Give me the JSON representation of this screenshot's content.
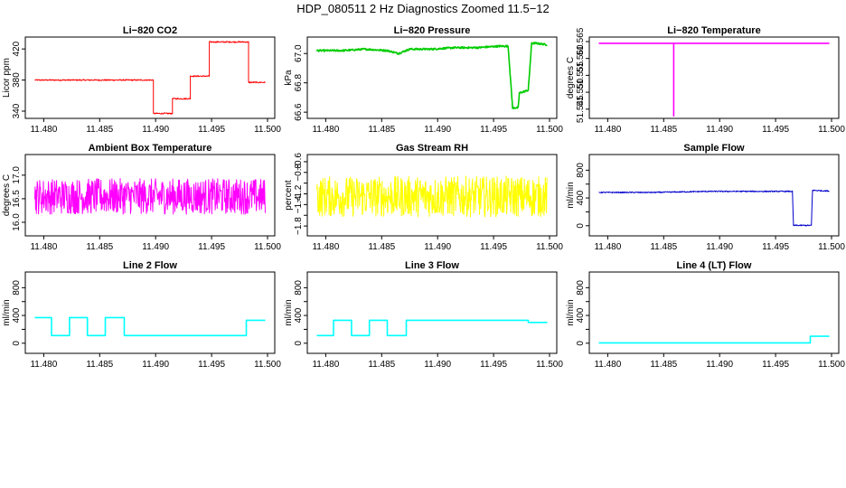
{
  "page": {
    "title": "HDP_080511  2 Hz Diagnostics Zoomed 11.5−12"
  },
  "chart_data": [
    {
      "type": "line",
      "title": "Li−820 CO2",
      "xlabel": "",
      "ylabel": "Licor ppm",
      "color": "#ff0000",
      "xlim": [
        11.479,
        11.5
      ],
      "ylim": [
        333,
        433
      ],
      "xticks": [
        11.48,
        11.485,
        11.49,
        11.495,
        11.5
      ],
      "xtick_labels": [
        "11.480",
        "11.485",
        "11.490",
        "11.495",
        "11.500"
      ],
      "yticks": [
        340,
        380,
        420
      ],
      "ytick_labels": [
        "340",
        "380",
        "420"
      ],
      "series": [
        {
          "x": [
            11.4792,
            11.4898,
            11.4898,
            11.4915,
            11.4915,
            11.4931,
            11.4931,
            11.4948,
            11.4948,
            11.4983,
            11.4983,
            11.4998
          ],
          "y": [
            380,
            380,
            337,
            337,
            356,
            356,
            385,
            385,
            429,
            429,
            377,
            377
          ]
        }
      ],
      "noise": 0.8
    },
    {
      "type": "line",
      "title": "Li−820 Pressure",
      "xlabel": "",
      "ylabel": "kPa",
      "color": "#00cc00",
      "xlim": [
        11.479,
        11.5
      ],
      "ylim": [
        66.57,
        67.1
      ],
      "xticks": [
        11.48,
        11.485,
        11.49,
        11.495,
        11.5
      ],
      "xtick_labels": [
        "11.480",
        "11.485",
        "11.490",
        "11.495",
        "11.500"
      ],
      "yticks": [
        66.6,
        66.8,
        67.0
      ],
      "ytick_labels": [
        "66.6",
        "66.8",
        "67.0"
      ],
      "series": [
        {
          "x": [
            11.4792,
            11.4815,
            11.4835,
            11.4855,
            11.4865,
            11.4875,
            11.4895,
            11.4915,
            11.4935,
            11.4955,
            11.4963,
            11.4967,
            11.4968,
            11.4972,
            11.4973,
            11.4981,
            11.4984,
            11.4988,
            11.4998
          ],
          "y": [
            67.02,
            67.02,
            67.03,
            67.02,
            67.0,
            67.03,
            67.03,
            67.04,
            67.04,
            67.05,
            67.05,
            66.63,
            66.63,
            66.63,
            66.73,
            66.75,
            67.07,
            67.07,
            67.06
          ]
        }
      ],
      "noise": 0.006
    },
    {
      "type": "line",
      "title": "Li−820 Temperature",
      "xlabel": "",
      "ylabel": "degrees C",
      "color": "#ff00ff",
      "xlim": [
        11.479,
        11.5
      ],
      "ylim": [
        51.5428,
        51.5658
      ],
      "xticks": [
        11.48,
        11.485,
        11.49,
        11.495,
        11.5
      ],
      "xtick_labels": [
        "11.480",
        "11.485",
        "11.490",
        "11.495",
        "11.500"
      ],
      "yticks": [
        51.545,
        51.55,
        51.555,
        51.56,
        51.565
      ],
      "ytick_labels": [
        "51.545",
        "51.550",
        "51.555",
        "51.560",
        "51.565"
      ],
      "series": [
        {
          "x": [
            11.4792,
            11.4859,
            11.4859,
            11.4859,
            11.4998
          ],
          "y": [
            51.5645,
            51.5645,
            51.543,
            51.5645,
            51.5645
          ]
        }
      ],
      "noise": 0
    },
    {
      "type": "line",
      "title": "Ambient Box Temperature",
      "xlabel": "",
      "ylabel": "degrees C",
      "color": "#ff00ff",
      "xlim": [
        11.479,
        11.5
      ],
      "ylim": [
        15.75,
        17.4
      ],
      "xticks": [
        11.48,
        11.485,
        11.49,
        11.495,
        11.5
      ],
      "xtick_labels": [
        "11.480",
        "11.485",
        "11.490",
        "11.495",
        "11.500"
      ],
      "yticks": [
        16.0,
        16.5,
        17.0
      ],
      "ytick_labels": [
        "16.0",
        "16.5",
        "17.0"
      ],
      "series": [
        {
          "x": [
            11.4792,
            11.4998
          ],
          "y": [
            16.55,
            16.55
          ]
        }
      ],
      "noise": 0.38
    },
    {
      "type": "line",
      "title": "Gas Stream RH",
      "xlabel": "",
      "ylabel": "percent",
      "color": "#ffff00",
      "xlim": [
        11.479,
        11.5
      ],
      "ylim": [
        -1.95,
        -0.5
      ],
      "xticks": [
        11.48,
        11.485,
        11.49,
        11.495,
        11.5
      ],
      "xtick_labels": [
        "11.480",
        "11.485",
        "11.490",
        "11.495",
        "11.500"
      ],
      "yticks": [
        -1.8,
        -1.6,
        -1.4,
        -1.2,
        -1.0,
        -0.8,
        -0.6
      ],
      "ytick_labels": [
        "−1.8",
        "",
        "−1.4",
        "−1.2",
        "",
        "−0.8",
        "−0.6"
      ],
      "series": [
        {
          "x": [
            11.4792,
            11.4998
          ],
          "y": [
            -1.25,
            -1.25
          ]
        }
      ],
      "noise": 0.38
    },
    {
      "type": "line",
      "title": "Sample Flow",
      "xlabel": "",
      "ylabel": "ml/min",
      "color": "#0000cc",
      "xlim": [
        11.479,
        11.5
      ],
      "ylim": [
        -120,
        1000
      ],
      "xticks": [
        11.48,
        11.485,
        11.49,
        11.495,
        11.5
      ],
      "xtick_labels": [
        "11.480",
        "11.485",
        "11.490",
        "11.495",
        "11.500"
      ],
      "yticks": [
        0,
        200,
        400,
        600,
        800
      ],
      "ytick_labels": [
        "0",
        "",
        "400",
        "",
        "800"
      ],
      "series": [
        {
          "x": [
            11.4792,
            11.484,
            11.489,
            11.4965,
            11.4966,
            11.4982,
            11.4983,
            11.4998
          ],
          "y": [
            480,
            480,
            495,
            495,
            5,
            5,
            510,
            500
          ]
        }
      ],
      "noise": 8
    },
    {
      "type": "line",
      "title": "Line 2 Flow",
      "xlabel": "",
      "ylabel": "ml/min",
      "color": "#00ffff",
      "xlim": [
        11.479,
        11.5
      ],
      "ylim": [
        -120,
        1000
      ],
      "xticks": [
        11.48,
        11.485,
        11.49,
        11.495,
        11.5
      ],
      "xtick_labels": [
        "11.480",
        "11.485",
        "11.490",
        "11.495",
        "11.500"
      ],
      "yticks": [
        0,
        200,
        400,
        600,
        800
      ],
      "ytick_labels": [
        "0",
        "",
        "400",
        "",
        "800"
      ],
      "series": [
        {
          "x": [
            11.4792,
            11.4807,
            11.4807,
            11.4823,
            11.4823,
            11.4839,
            11.4839,
            11.4855,
            11.4855,
            11.4872,
            11.4872,
            11.4981,
            11.4981,
            11.4998
          ],
          "y": [
            370,
            370,
            110,
            110,
            370,
            370,
            110,
            110,
            370,
            370,
            110,
            110,
            330,
            330
          ]
        }
      ],
      "noise": 0
    },
    {
      "type": "line",
      "title": "Line 3 Flow",
      "xlabel": "",
      "ylabel": "ml/min",
      "color": "#00ffff",
      "xlim": [
        11.479,
        11.5
      ],
      "ylim": [
        -120,
        1000
      ],
      "xticks": [
        11.48,
        11.485,
        11.49,
        11.495,
        11.5
      ],
      "xtick_labels": [
        "11.480",
        "11.485",
        "11.490",
        "11.495",
        "11.500"
      ],
      "yticks": [
        0,
        200,
        400,
        600,
        800
      ],
      "ytick_labels": [
        "0",
        "",
        "400",
        "",
        "800"
      ],
      "series": [
        {
          "x": [
            11.4792,
            11.4807,
            11.4807,
            11.4823,
            11.4823,
            11.4839,
            11.4839,
            11.4855,
            11.4855,
            11.4872,
            11.4872,
            11.4981,
            11.4981,
            11.4998
          ],
          "y": [
            110,
            110,
            330,
            330,
            110,
            110,
            330,
            330,
            110,
            110,
            330,
            330,
            300,
            300
          ]
        }
      ],
      "noise": 0
    },
    {
      "type": "line",
      "title": "Line 4 (LT) Flow",
      "xlabel": "",
      "ylabel": "ml/min",
      "color": "#00ffff",
      "xlim": [
        11.479,
        11.5
      ],
      "ylim": [
        -120,
        1000
      ],
      "xticks": [
        11.48,
        11.485,
        11.49,
        11.495,
        11.5
      ],
      "xtick_labels": [
        "11.480",
        "11.485",
        "11.490",
        "11.495",
        "11.500"
      ],
      "yticks": [
        0,
        200,
        400,
        600,
        800
      ],
      "ytick_labels": [
        "0",
        "",
        "400",
        "",
        "800"
      ],
      "series": [
        {
          "x": [
            11.4792,
            11.4981,
            11.4981,
            11.4998
          ],
          "y": [
            5,
            5,
            100,
            100
          ]
        }
      ],
      "noise": 0
    }
  ]
}
